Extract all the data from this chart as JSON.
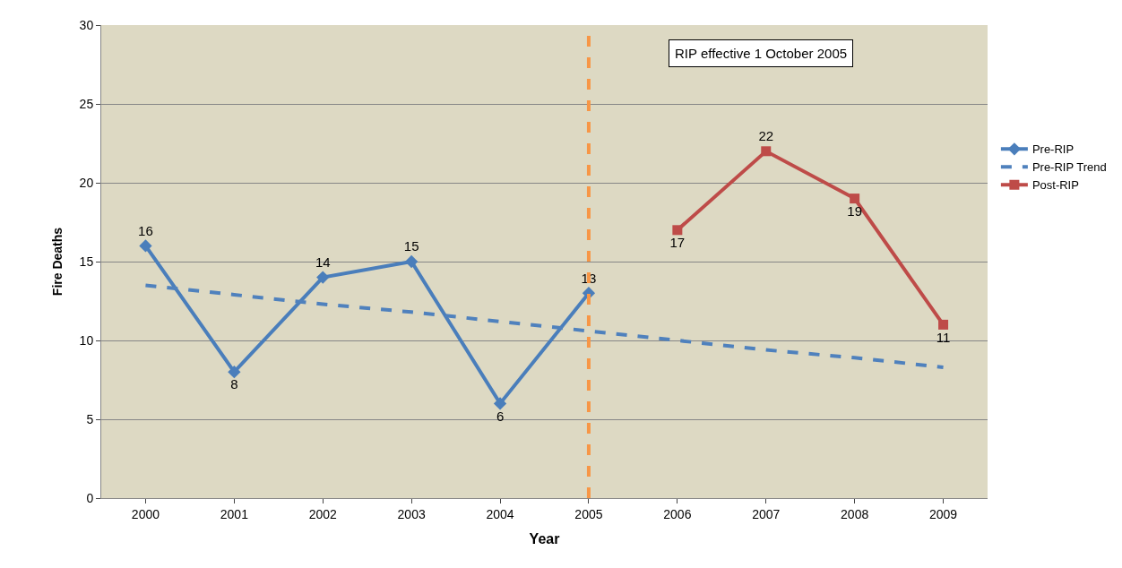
{
  "chart_data": {
    "type": "line",
    "xlabel": "Year",
    "ylabel": "Fire Deaths",
    "categories": [
      "2000",
      "2001",
      "2002",
      "2003",
      "2004",
      "2005",
      "2006",
      "2007",
      "2008",
      "2009"
    ],
    "series": [
      {
        "name": "Pre-RIP",
        "color": "#4a7ebb",
        "marker": "diamond",
        "line_style": "solid",
        "values": [
          16,
          8,
          14,
          15,
          6,
          13,
          null,
          null,
          null,
          null
        ],
        "value_labels": [
          "16",
          "8",
          "14",
          "15",
          "6",
          "13",
          null,
          null,
          null,
          null
        ]
      },
      {
        "name": "Pre-RIP Trend",
        "color": "#4f81bd",
        "marker": "none",
        "line_style": "dashed",
        "values": [
          13.5,
          12.9,
          12.3,
          11.8,
          11.2,
          10.6,
          10.0,
          9.4,
          8.9,
          8.3
        ]
      },
      {
        "name": "Post-RIP",
        "color": "#be4b48",
        "marker": "square",
        "line_style": "solid",
        "values": [
          null,
          null,
          null,
          null,
          null,
          null,
          17,
          22,
          19,
          11
        ],
        "value_labels": [
          null,
          null,
          null,
          null,
          null,
          null,
          "17",
          "22",
          "19",
          "11"
        ]
      }
    ],
    "ylim": [
      0,
      30
    ],
    "yticks": [
      0,
      5,
      10,
      15,
      20,
      25,
      30
    ],
    "grid": "y",
    "legend": "right",
    "ref_lines": [
      {
        "axis": "x",
        "value": "2005",
        "color": "#f79646",
        "line_style": "dashed"
      }
    ],
    "annotations": [
      "RIP effective 1 October 2005"
    ]
  }
}
